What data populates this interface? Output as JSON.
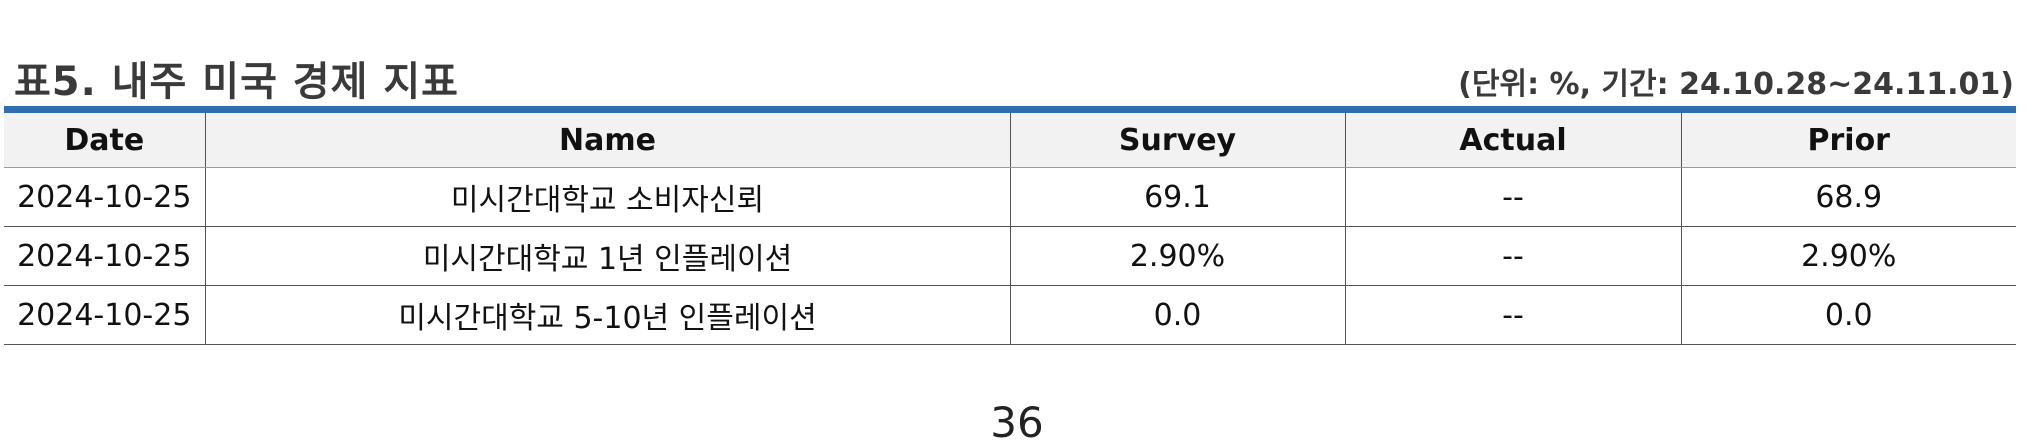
{
  "title": "표5. 내주 미국 경제 지표",
  "unit_note": "(단위: %, 기간: 24.10.28~24.11.01)",
  "table": {
    "headers": [
      "Date",
      "Name",
      "Survey",
      "Actual",
      "Prior"
    ],
    "rows": [
      [
        "2024-10-25",
        "미시간대학교 소비자신뢰",
        "69.1",
        "--",
        "68.9"
      ],
      [
        "2024-10-25",
        "미시간대학교 1년 인플레이션",
        "2.90%",
        "--",
        "2.90%"
      ],
      [
        "2024-10-25",
        "미시간대학교 5-10년 인플레이션",
        "0.0",
        "--",
        "0.0"
      ]
    ]
  },
  "page_number": "36"
}
